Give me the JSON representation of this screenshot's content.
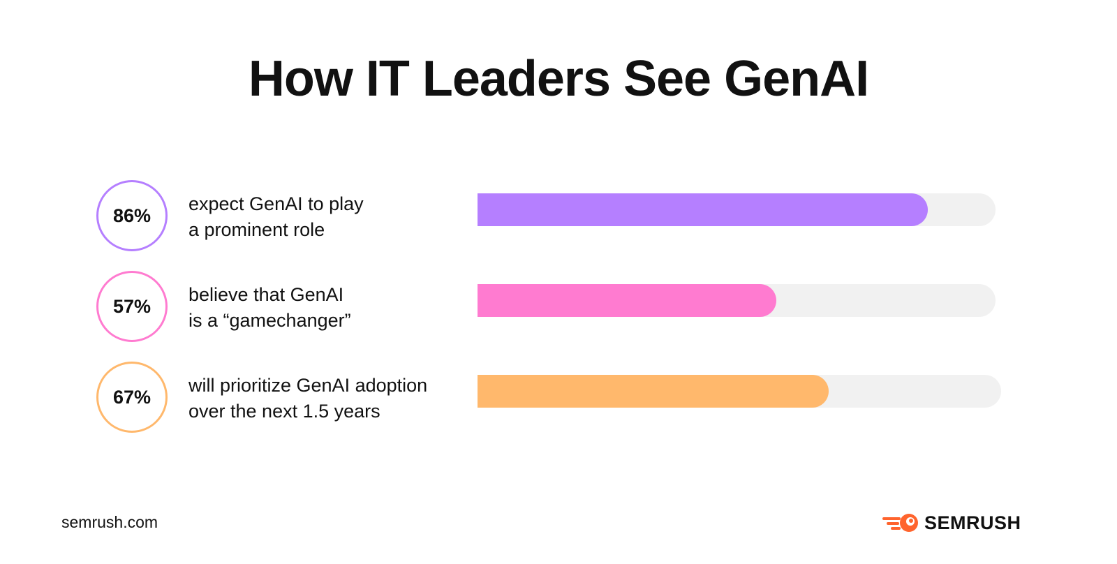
{
  "title": "How IT Leaders See GenAI",
  "chart_data": {
    "type": "bar",
    "orientation": "horizontal",
    "categories": [
      "expect GenAI to play a prominent role",
      "believe that GenAI is a “gamechanger”",
      "will prioritize GenAI adoption over the next 1.5 years"
    ],
    "values": [
      86,
      57,
      67
    ],
    "value_labels": [
      "86%",
      "57%",
      "67%"
    ],
    "label_lines": [
      [
        "expect GenAI to play",
        "a prominent role"
      ],
      [
        "believe that GenAI",
        "is a “gamechanger”"
      ],
      [
        "will prioritize GenAI adoption",
        "over the next 1.5 years"
      ]
    ],
    "colors": [
      "#b57fff",
      "#ff7bd0",
      "#ffb86c"
    ],
    "track_color": "#f1f1f1",
    "xlim": [
      0,
      100
    ],
    "grid": false,
    "legend": "none"
  },
  "footer": {
    "site": "semrush.com",
    "brand_name": "SEMRUSH",
    "brand_icon": "semrush-fireball-icon",
    "brand_color": "#ff642d"
  }
}
